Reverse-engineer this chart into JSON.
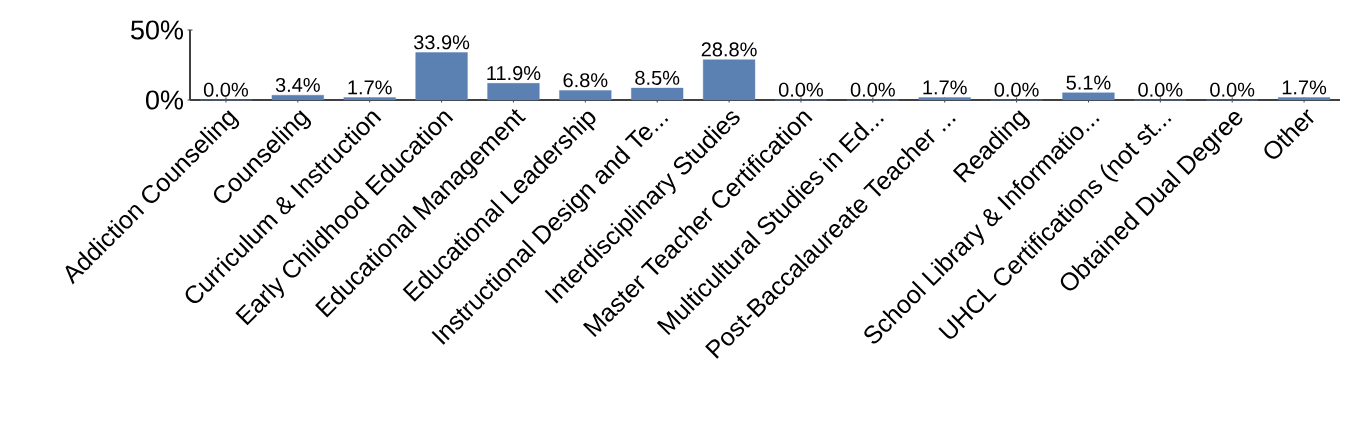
{
  "chart_data": {
    "type": "bar",
    "categories": [
      "Addiction Counseling",
      "Counseling",
      "Curriculum & Instruction",
      "Early Childhood Education",
      "Educational Management",
      "Educational Leadership",
      "Instructional Design and Te...",
      "Interdisciplinary Studies",
      "Master Teacher Certification",
      "Multicultural Studies in Ed...",
      "Post-Baccalaureate Teacher ...",
      "Reading",
      "School Library & Informatio...",
      "UHCL Certifications (not st...",
      "Obtained Dual Degree",
      "Other"
    ],
    "values": [
      0.0,
      3.4,
      1.7,
      33.9,
      11.9,
      6.8,
      8.5,
      28.8,
      0.0,
      0.0,
      1.7,
      0.0,
      5.1,
      0.0,
      0.0,
      1.7
    ],
    "value_labels": [
      "0.0%",
      "3.4%",
      "1.7%",
      "33.9%",
      "11.9%",
      "6.8%",
      "8.5%",
      "28.8%",
      "0.0%",
      "0.0%",
      "1.7%",
      "0.0%",
      "5.1%",
      "0.0%",
      "0.0%",
      "1.7%"
    ],
    "color": "#5b80b2",
    "ylim": [
      0,
      50
    ],
    "yticks": [
      {
        "value": 0,
        "label": "0%"
      },
      {
        "value": 50,
        "label": "50%"
      }
    ]
  }
}
